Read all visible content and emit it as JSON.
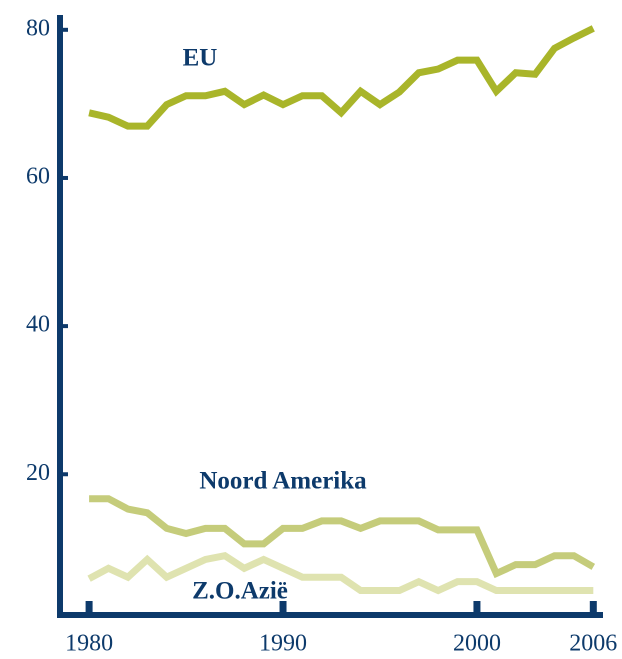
{
  "chart_data": {
    "type": "line",
    "x": [
      1980,
      1981,
      1982,
      1983,
      1984,
      1985,
      1986,
      1987,
      1988,
      1989,
      1990,
      1991,
      1992,
      1993,
      1994,
      1995,
      1996,
      1997,
      1998,
      1999,
      2000,
      2001,
      2002,
      2003,
      2004,
      2005,
      2006
    ],
    "series": [
      {
        "name": "EU",
        "color": "#a9b52a",
        "values": [
          68.8,
          68.2,
          67.0,
          67.0,
          69.9,
          71.1,
          71.1,
          71.7,
          69.9,
          71.2,
          69.9,
          71.1,
          71.1,
          68.8,
          71.7,
          69.9,
          71.6,
          74.2,
          74.7,
          75.9,
          75.9,
          71.7,
          74.2,
          74.0,
          77.5,
          78.9,
          80.2
        ]
      },
      {
        "name": "Noord Amerika",
        "color": "#c5cc7b",
        "values": [
          16.7,
          16.7,
          15.3,
          14.8,
          12.7,
          12.0,
          12.7,
          12.7,
          10.6,
          10.6,
          12.7,
          12.7,
          13.7,
          13.7,
          12.7,
          13.7,
          13.7,
          13.7,
          12.5,
          12.5,
          12.5,
          6.6,
          7.8,
          7.8,
          9.0,
          9.0,
          7.5
        ]
      },
      {
        "name": "Z.O.Azië",
        "color": "#dfe3b0",
        "values": [
          5.9,
          7.3,
          6.1,
          8.5,
          6.1,
          7.3,
          8.5,
          9.0,
          7.3,
          8.5,
          7.3,
          6.1,
          6.1,
          6.1,
          4.3,
          4.3,
          4.3,
          5.5,
          4.3,
          5.5,
          5.5,
          4.3,
          4.3,
          4.3,
          4.3,
          4.3,
          4.3
        ]
      }
    ],
    "xlim": [
      1978.5,
      2006.5
    ],
    "xticks": [
      1980,
      1990,
      2000,
      2006
    ],
    "ylim": [
      1,
      82
    ],
    "yticks": [
      20,
      40,
      60,
      80
    ]
  }
}
